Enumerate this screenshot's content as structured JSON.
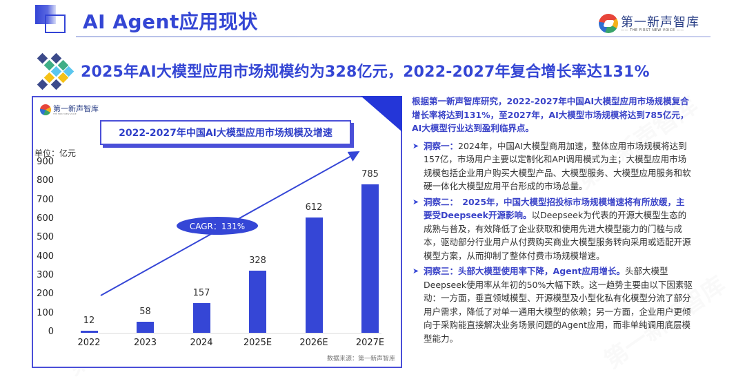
{
  "header": {
    "title": "AI Agent应用现状",
    "brand_name": "第一新声智库",
    "brand_sub": "—— THE FIRST NEW VOICE ——"
  },
  "subtitle": "2025年AI大模型应用市场规模约为328亿元，2022-2027年复合增长率达131%",
  "chart_panel": {
    "brand_name": "第一新声智库",
    "brand_sub": "THE FIRST NEW VOICE",
    "title": "2022-2027年中国AI大模型应用市场规模及增速",
    "unit": "单位：亿元",
    "cagr_label": "CAGR：131%",
    "source": "数据来源：第一新声智库",
    "bar_color": "#3546d6"
  },
  "chart_data": {
    "type": "bar",
    "title": "2022-2027年中国AI大模型应用市场规模及增速",
    "xlabel": "",
    "ylabel": "单位：亿元",
    "categories": [
      "2022",
      "2023",
      "2024",
      "2025E",
      "2026E",
      "2027E"
    ],
    "values": [
      12,
      58,
      157,
      328,
      612,
      785
    ],
    "y_ticks": [
      0,
      100,
      200,
      300,
      400,
      500,
      600,
      700,
      800,
      900
    ],
    "ylim": [
      0,
      900
    ],
    "grid": false,
    "legend": null,
    "annotations": [
      {
        "text": "CAGR：131%",
        "type": "trend-arrow"
      }
    ],
    "source": "数据来源：第一新声智库"
  },
  "text_column": {
    "lead": "根据第一新声智库研究，2022-2027年中国AI大模型应用市场规模复合增长率将达到131%，至2027年，AI大模型市场规模将达到785亿元，AI大模型行业达到盈利临界点。",
    "insights": [
      {
        "label": "洞察一：",
        "highlight": "",
        "body": "2024年，中国AI大模型商用加速，整体应用市场规模将达到157亿，市场用户主要以定制化和API调用模式为主；大模型应用市场规模包括企业用户购买大模型产品、大模型服务、大模型应用服务和软硬一体化大模型应用平台形成的市场总量。"
      },
      {
        "label": "洞察二：",
        "highlight": "　2025年，中国大模型招投标市场规模增速将有所放缓，主要受Deepseek开源影响。",
        "body": "以Deepseek为代表的开源大模型生态的成熟与普及，有效降低了企业获取和使用先进大模型能力的门槛与成本，驱动部分行业用户从付费购买商业大模型服务转向采用或适配开源模型方案，从而抑制了整体付费市场规模增速。"
      },
      {
        "label": "洞察三：",
        "highlight": "头部大模型使用率下降，Agent应用增长。",
        "body": "头部大模型Deepseek使用率从年初的50%大幅下跌。这一趋势主要由以下因素驱动：一方面，垂直领域模型、开源模型及小型化私有化模型分流了部分用户需求，降低了对单一通用大模型的依赖；另一方面，企业用户更倾向于采购能直接解决业务场景问题的Agent应用，而非单纯调用底层模型能力。"
      }
    ]
  },
  "colors": {
    "primary_blue": "#3446d4",
    "bar_blue": "#3546d6",
    "panel_border": "#4a4fd8"
  }
}
